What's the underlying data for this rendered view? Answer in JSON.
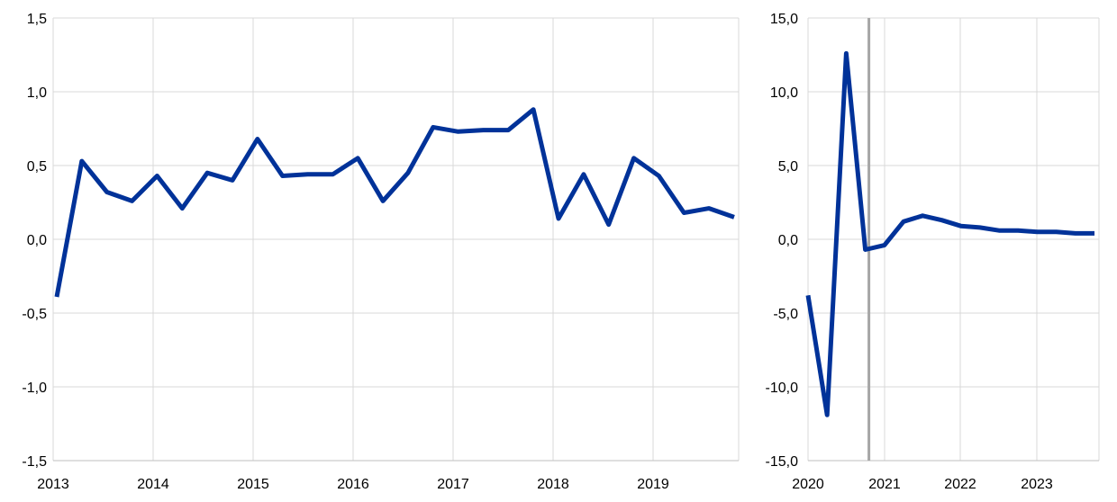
{
  "chart_data": [
    {
      "type": "line",
      "x_tick_labels": [
        "2013",
        "2014",
        "2015",
        "2016",
        "2017",
        "2018",
        "2019"
      ],
      "y_tick_labels": [
        "1,5",
        "1,0",
        "0,5",
        "0,0",
        "-0,5",
        "-1,0",
        "-1,5"
      ],
      "ylim": [
        -1.5,
        1.5
      ],
      "x_range": [
        "2013 Q1",
        "2019 Q4"
      ],
      "grid": true,
      "line_color": "#003299",
      "x": [
        "2013 Q1",
        "2013 Q2",
        "2013 Q3",
        "2013 Q4",
        "2014 Q1",
        "2014 Q2",
        "2014 Q3",
        "2014 Q4",
        "2015 Q1",
        "2015 Q2",
        "2015 Q3",
        "2015 Q4",
        "2016 Q1",
        "2016 Q2",
        "2016 Q3",
        "2016 Q4",
        "2017 Q1",
        "2017 Q2",
        "2017 Q3",
        "2017 Q4",
        "2018 Q1",
        "2018 Q2",
        "2018 Q3",
        "2018 Q4",
        "2019 Q1",
        "2019 Q2",
        "2019 Q3",
        "2019 Q4"
      ],
      "values": [
        -0.39,
        0.53,
        0.32,
        0.26,
        0.43,
        0.21,
        0.45,
        0.4,
        0.68,
        0.43,
        0.44,
        0.44,
        0.55,
        0.26,
        0.45,
        0.76,
        0.73,
        0.74,
        0.74,
        0.88,
        0.14,
        0.44,
        0.1,
        0.55,
        0.43,
        0.18,
        0.21,
        0.15
      ]
    },
    {
      "type": "line",
      "x_tick_labels": [
        "2020",
        "2021",
        "2022",
        "2023"
      ],
      "y_tick_labels": [
        "15,0",
        "10,0",
        "5,0",
        "0,0",
        "-5,0",
        "-10,0",
        "-15,0"
      ],
      "ylim": [
        -15,
        15
      ],
      "x_range": [
        "2020 Q1",
        "2023 Q4"
      ],
      "grid": true,
      "line_color": "#003299",
      "marker_line_color": "#a6a6a6",
      "marker_line_at": "2020 Q4",
      "x": [
        "2020 Q1",
        "2020 Q2",
        "2020 Q3",
        "2020 Q4",
        "2021 Q1",
        "2021 Q2",
        "2021 Q3",
        "2021 Q4",
        "2022 Q1",
        "2022 Q2",
        "2022 Q3",
        "2022 Q4",
        "2023 Q1",
        "2023 Q2",
        "2023 Q3",
        "2023 Q4"
      ],
      "values": [
        -3.8,
        -11.9,
        12.6,
        -0.7,
        -0.4,
        1.2,
        1.6,
        1.3,
        0.9,
        0.8,
        0.6,
        0.6,
        0.5,
        0.5,
        0.4,
        0.4
      ]
    }
  ]
}
